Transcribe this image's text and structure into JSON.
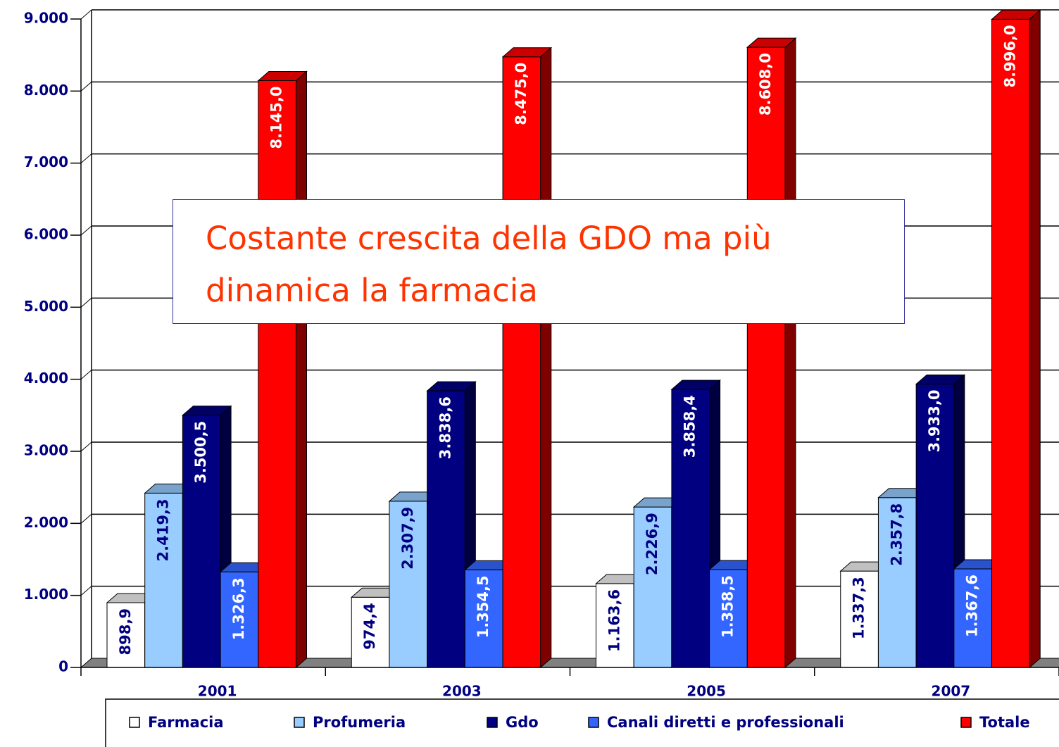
{
  "chart_data": {
    "type": "bar3d",
    "annotation": "Costante crescita della GDO ma più dinamica la farmacia",
    "categories": [
      "2001",
      "2003",
      "2005",
      "2007"
    ],
    "series": [
      {
        "name": "Farmacia",
        "color": "#ffffff",
        "label_color": "#000080",
        "values": [
          898.9,
          974.4,
          1163.6,
          1337.3
        ],
        "value_labels": [
          "898,9",
          "974,4",
          "1.163,6",
          "1.337,3"
        ]
      },
      {
        "name": "Profumeria",
        "color": "#99ccff",
        "label_color": "#000080",
        "values": [
          2419.3,
          2307.9,
          2226.9,
          2357.8
        ],
        "value_labels": [
          "2.419,3",
          "2.307,9",
          "2.226,9",
          "2.357,8"
        ]
      },
      {
        "name": "Gdo",
        "color": "#000080",
        "label_color": "#ffffff",
        "values": [
          3500.5,
          3838.6,
          3858.4,
          3933.0
        ],
        "value_labels": [
          "3.500,5",
          "3.838,6",
          "3.858,4",
          "3.933,0"
        ]
      },
      {
        "name": "Canali diretti e professionali",
        "color": "#3366ff",
        "label_color": "#ffffff",
        "values": [
          1326.3,
          1354.5,
          1358.5,
          1367.6
        ],
        "value_labels": [
          "1.326,3",
          "1.354,5",
          "1.358,5",
          "1.367,6"
        ]
      },
      {
        "name": "Totale",
        "color": "#ff0000",
        "label_color": "#ffffff",
        "values": [
          8145.0,
          8475.0,
          8608.0,
          8996.0
        ],
        "value_labels": [
          "8.145,0",
          "8.475,0",
          "8.608,0",
          "8.996,0"
        ]
      }
    ],
    "ylim": [
      0,
      9000
    ],
    "yticks": [
      0,
      {
        "value": 1000,
        "label": "1.000"
      },
      {
        "value": 2000,
        "label": "2.000"
      },
      {
        "value": 3000,
        "label": "3.000"
      },
      {
        "value": 4000,
        "label": "4.000"
      },
      {
        "value": 5000,
        "label": "5.000"
      },
      {
        "value": 6000,
        "label": "6.000"
      },
      {
        "value": 7000,
        "label": "7.000"
      },
      {
        "value": 8000,
        "label": "8.000"
      },
      {
        "value": 9000,
        "label": "9.000"
      }
    ],
    "grid": true,
    "legend": "bottom"
  }
}
